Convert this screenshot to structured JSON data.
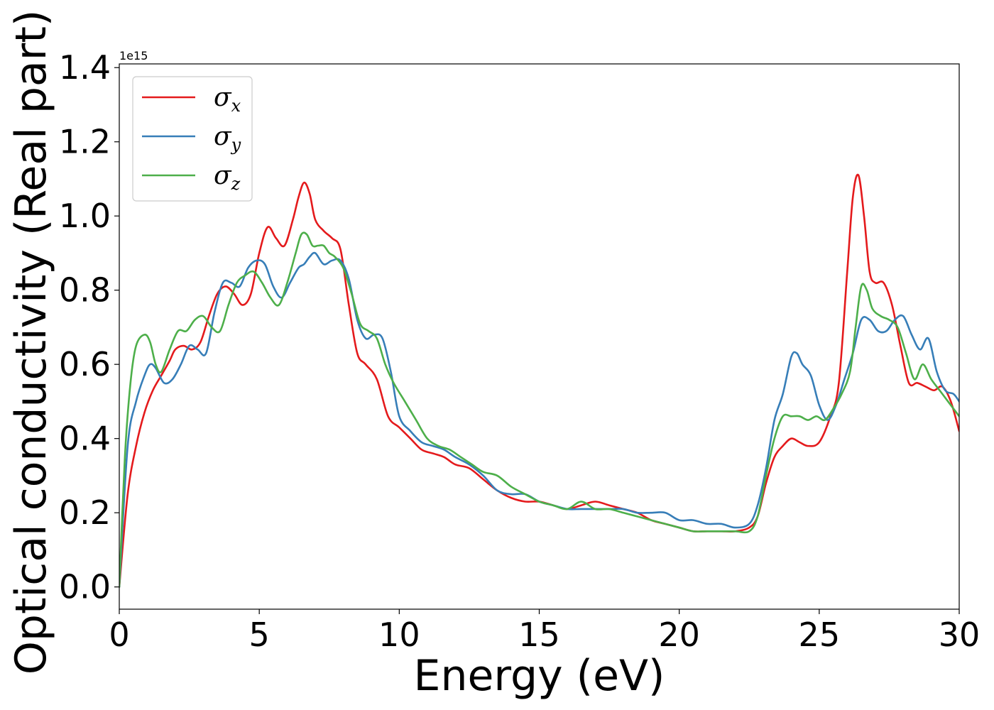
{
  "chart_data": {
    "type": "line",
    "title": "",
    "xlabel": "Energy (eV)",
    "ylabel": "Optical conductivity (Real part)",
    "y_offset_label": "1e15",
    "y_scale_factor": 1000000000000000.0,
    "xlim": [
      0,
      30
    ],
    "ylim": [
      -0.06,
      1.41
    ],
    "xticks": [
      0,
      5,
      10,
      15,
      20,
      25,
      30
    ],
    "xtick_labels": [
      "0",
      "5",
      "10",
      "15",
      "20",
      "25",
      "30"
    ],
    "yticks": [
      0.0,
      0.2,
      0.4,
      0.6,
      0.8,
      1.0,
      1.2,
      1.4
    ],
    "ytick_labels": [
      "0.0",
      "0.2",
      "0.4",
      "0.6",
      "0.8",
      "1.0",
      "1.2",
      "1.4"
    ],
    "grid": false,
    "legend_position": "top-left",
    "series": [
      {
        "name": "σ_x",
        "symbol": "σ",
        "sub": "x",
        "color": "#e41a1c",
        "x": [
          0,
          0.3,
          0.6,
          0.9,
          1.2,
          1.5,
          1.8,
          2.0,
          2.3,
          2.6,
          2.9,
          3.2,
          3.5,
          3.8,
          4.1,
          4.4,
          4.7,
          5.0,
          5.3,
          5.6,
          5.9,
          6.2,
          6.4,
          6.6,
          6.8,
          7.0,
          7.3,
          7.6,
          7.9,
          8.2,
          8.5,
          8.8,
          9.2,
          9.6,
          10.0,
          10.4,
          10.8,
          11.2,
          11.6,
          12.0,
          12.5,
          13.0,
          13.5,
          14.0,
          14.5,
          15.0,
          15.5,
          16.0,
          16.5,
          17.0,
          17.5,
          18.0,
          18.5,
          19.0,
          19.5,
          20.0,
          20.5,
          21.0,
          21.5,
          22.0,
          22.5,
          22.8,
          23.1,
          23.4,
          23.7,
          24.0,
          24.3,
          24.6,
          25.0,
          25.4,
          25.7,
          26.0,
          26.2,
          26.4,
          26.6,
          26.8,
          27.0,
          27.3,
          27.6,
          27.9,
          28.2,
          28.5,
          28.8,
          29.1,
          29.4,
          29.7,
          30.0
        ],
        "values": [
          0.0,
          0.25,
          0.38,
          0.47,
          0.53,
          0.57,
          0.61,
          0.64,
          0.65,
          0.64,
          0.66,
          0.73,
          0.79,
          0.81,
          0.79,
          0.76,
          0.79,
          0.9,
          0.97,
          0.94,
          0.92,
          0.99,
          1.05,
          1.09,
          1.06,
          0.99,
          0.96,
          0.94,
          0.91,
          0.76,
          0.63,
          0.6,
          0.56,
          0.46,
          0.43,
          0.4,
          0.37,
          0.36,
          0.35,
          0.33,
          0.32,
          0.29,
          0.26,
          0.24,
          0.23,
          0.23,
          0.22,
          0.21,
          0.22,
          0.23,
          0.22,
          0.21,
          0.2,
          0.18,
          0.17,
          0.16,
          0.15,
          0.15,
          0.15,
          0.15,
          0.16,
          0.19,
          0.28,
          0.35,
          0.38,
          0.4,
          0.39,
          0.38,
          0.39,
          0.46,
          0.55,
          0.85,
          1.05,
          1.11,
          1.0,
          0.85,
          0.82,
          0.82,
          0.76,
          0.65,
          0.55,
          0.55,
          0.54,
          0.53,
          0.54,
          0.5,
          0.42
        ]
      },
      {
        "name": "σ_y",
        "symbol": "σ",
        "sub": "y",
        "color": "#377eb8",
        "x": [
          0,
          0.3,
          0.6,
          0.9,
          1.1,
          1.3,
          1.6,
          1.9,
          2.2,
          2.5,
          2.8,
          3.1,
          3.4,
          3.7,
          4.0,
          4.3,
          4.6,
          4.9,
          5.2,
          5.5,
          5.8,
          6.1,
          6.4,
          6.6,
          6.8,
          7.0,
          7.3,
          7.6,
          7.9,
          8.2,
          8.5,
          8.8,
          9.1,
          9.4,
          9.7,
          10.0,
          10.4,
          10.8,
          11.2,
          11.6,
          12.0,
          12.5,
          13.0,
          13.5,
          14.0,
          14.5,
          15.0,
          15.5,
          16.0,
          16.5,
          17.0,
          17.5,
          18.0,
          18.5,
          19.0,
          19.5,
          20.0,
          20.5,
          21.0,
          21.5,
          22.0,
          22.5,
          22.8,
          23.1,
          23.4,
          23.7,
          24.0,
          24.2,
          24.4,
          24.7,
          25.0,
          25.3,
          25.6,
          25.9,
          26.2,
          26.5,
          26.8,
          27.1,
          27.4,
          27.7,
          28.0,
          28.3,
          28.6,
          28.9,
          29.2,
          29.5,
          29.8,
          30.0
        ],
        "values": [
          0.0,
          0.38,
          0.5,
          0.57,
          0.6,
          0.59,
          0.55,
          0.56,
          0.6,
          0.65,
          0.64,
          0.63,
          0.74,
          0.82,
          0.82,
          0.81,
          0.86,
          0.88,
          0.87,
          0.81,
          0.78,
          0.82,
          0.86,
          0.87,
          0.89,
          0.9,
          0.87,
          0.88,
          0.88,
          0.83,
          0.72,
          0.67,
          0.68,
          0.67,
          0.58,
          0.46,
          0.42,
          0.39,
          0.38,
          0.37,
          0.35,
          0.33,
          0.3,
          0.26,
          0.25,
          0.25,
          0.23,
          0.22,
          0.21,
          0.21,
          0.21,
          0.21,
          0.21,
          0.2,
          0.2,
          0.2,
          0.18,
          0.18,
          0.17,
          0.17,
          0.16,
          0.17,
          0.22,
          0.32,
          0.45,
          0.52,
          0.62,
          0.63,
          0.6,
          0.57,
          0.49,
          0.45,
          0.49,
          0.56,
          0.63,
          0.72,
          0.72,
          0.69,
          0.69,
          0.72,
          0.73,
          0.68,
          0.64,
          0.67,
          0.58,
          0.53,
          0.52,
          0.5
        ]
      },
      {
        "name": "σ_z",
        "symbol": "σ",
        "sub": "z",
        "color": "#4daf4a",
        "x": [
          0,
          0.2,
          0.4,
          0.6,
          0.9,
          1.1,
          1.3,
          1.5,
          1.8,
          2.1,
          2.4,
          2.7,
          3.0,
          3.3,
          3.6,
          3.9,
          4.2,
          4.5,
          4.8,
          5.1,
          5.4,
          5.7,
          6.0,
          6.3,
          6.5,
          6.7,
          6.9,
          7.1,
          7.3,
          7.5,
          7.7,
          8.0,
          8.3,
          8.6,
          8.9,
          9.2,
          9.5,
          9.8,
          10.2,
          10.6,
          11.0,
          11.4,
          11.8,
          12.2,
          12.6,
          13.0,
          13.5,
          14.0,
          14.5,
          15.0,
          15.5,
          16.0,
          16.5,
          17.0,
          17.5,
          18.0,
          18.5,
          19.0,
          19.5,
          20.0,
          20.5,
          21.0,
          21.5,
          22.0,
          22.5,
          22.8,
          23.1,
          23.4,
          23.7,
          24.0,
          24.3,
          24.6,
          24.9,
          25.2,
          25.5,
          25.8,
          26.1,
          26.3,
          26.5,
          26.7,
          26.9,
          27.2,
          27.5,
          27.8,
          28.1,
          28.4,
          28.7,
          29.0,
          29.3,
          29.6,
          30.0
        ],
        "values": [
          0.0,
          0.35,
          0.55,
          0.65,
          0.68,
          0.66,
          0.6,
          0.58,
          0.64,
          0.69,
          0.69,
          0.72,
          0.73,
          0.7,
          0.69,
          0.76,
          0.82,
          0.84,
          0.85,
          0.82,
          0.78,
          0.76,
          0.82,
          0.9,
          0.95,
          0.95,
          0.92,
          0.92,
          0.92,
          0.9,
          0.89,
          0.86,
          0.79,
          0.71,
          0.69,
          0.67,
          0.6,
          0.55,
          0.5,
          0.45,
          0.4,
          0.38,
          0.37,
          0.35,
          0.33,
          0.31,
          0.3,
          0.27,
          0.25,
          0.23,
          0.22,
          0.21,
          0.23,
          0.21,
          0.21,
          0.2,
          0.19,
          0.18,
          0.17,
          0.16,
          0.15,
          0.15,
          0.15,
          0.15,
          0.15,
          0.19,
          0.3,
          0.4,
          0.46,
          0.46,
          0.46,
          0.45,
          0.46,
          0.45,
          0.48,
          0.52,
          0.58,
          0.7,
          0.81,
          0.8,
          0.75,
          0.73,
          0.72,
          0.7,
          0.63,
          0.56,
          0.6,
          0.56,
          0.53,
          0.5,
          0.46
        ]
      }
    ]
  }
}
